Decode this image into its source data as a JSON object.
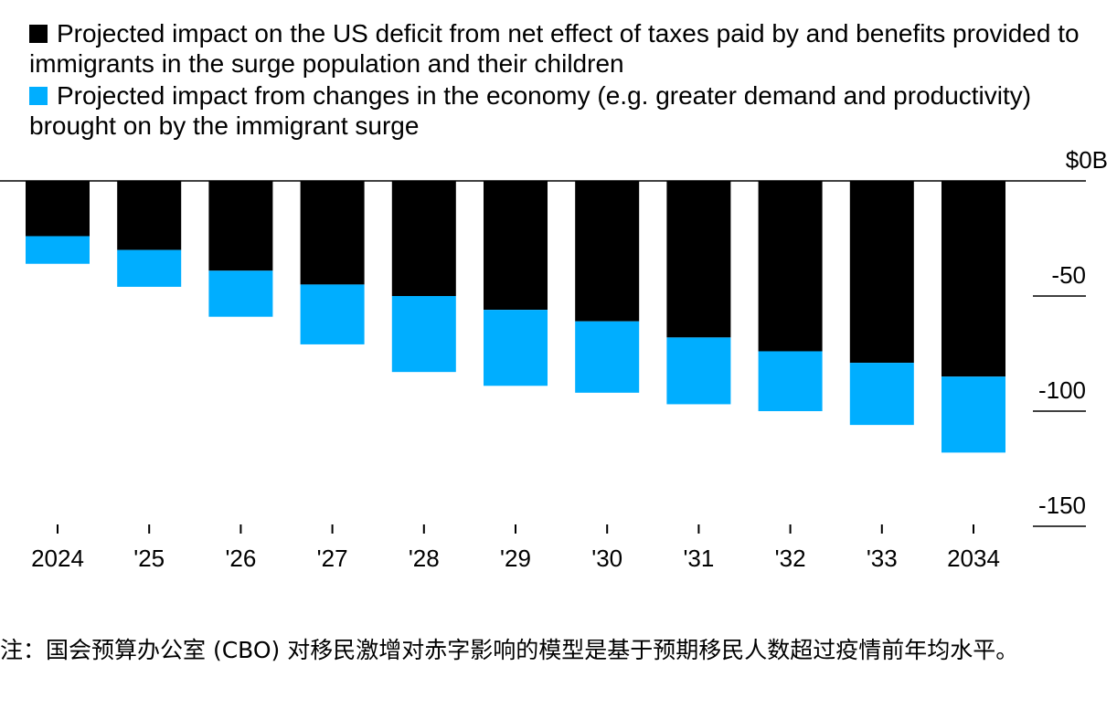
{
  "legend": [
    {
      "label": "Projected impact on the US deficit from net effect of taxes paid by and benefits provided to immigrants in the surge population and their children",
      "color": "#000000"
    },
    {
      "label": "Projected impact from changes in the economy (e.g. greater demand and productivity) brought on by the immigrant surge",
      "color": "#00aeff"
    }
  ],
  "chart_data": {
    "type": "bar",
    "stacked": true,
    "categories": [
      "2024",
      "'25",
      "'26",
      "'27",
      "'28",
      "'29",
      "'30",
      "'31",
      "'32",
      "'33",
      "2034"
    ],
    "series": [
      {
        "name": "Projected impact on the US deficit from net effect of taxes paid by and benefits provided to immigrants in the surge population and their children",
        "color": "#000000",
        "values": [
          -24,
          -30,
          -39,
          -45,
          -50,
          -56,
          -61,
          -68,
          -74,
          -79,
          -85
        ]
      },
      {
        "name": "Projected impact from changes in the economy (e.g. greater demand and productivity) brought on by the immigrant surge",
        "color": "#00aeff",
        "values": [
          -12,
          -16,
          -20,
          -26,
          -33,
          -33,
          -31,
          -29,
          -26,
          -27,
          -33
        ]
      }
    ],
    "y_ticks": [
      0,
      -50,
      -100,
      -150
    ],
    "y_tick_labels": [
      "$0B",
      "-50",
      "-100",
      "-150"
    ],
    "ylim": [
      -150,
      0
    ],
    "title": "",
    "xlabel": "",
    "ylabel": ""
  },
  "note": "注：国会预算办公室 (CBO) 对移民激增对赤字影响的模型是基于预期移民人数超过疫情前年均水平。"
}
